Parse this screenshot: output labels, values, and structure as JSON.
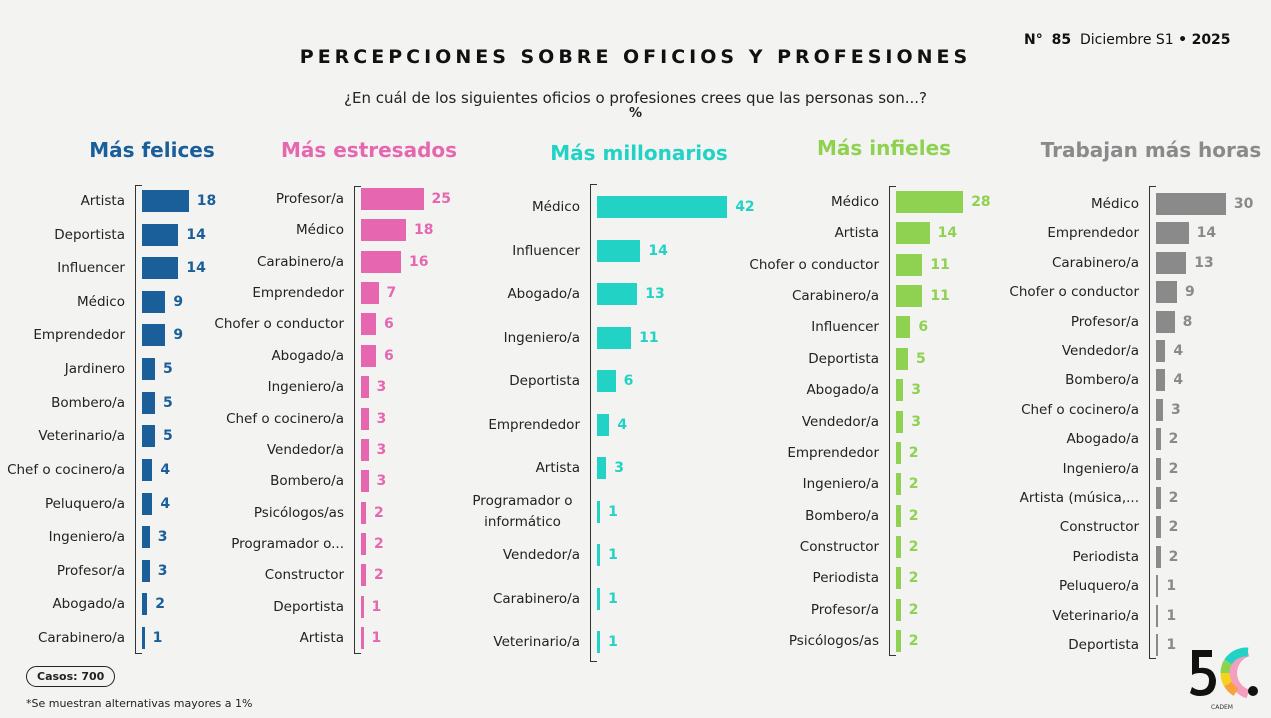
{
  "header": {
    "title": "PERCEPCIONES SOBRE OFICIOS Y PROFESIONES",
    "subtitle": "¿En cuál de los siguientes oficios o profesiones crees que las personas son...?",
    "unit": "%",
    "issue_prefix": "N°",
    "issue_number": "85",
    "issue_period": "Diciembre S1",
    "issue_separator": "•",
    "issue_year": "2025"
  },
  "footer": {
    "casos": "Casos: 700",
    "note": "*Se muestran alternativas mayores a 1%",
    "logo_text": "5C.",
    "logo_sub": "CADEM"
  },
  "chart_data": [
    {
      "type": "bar",
      "orientation": "horizontal",
      "title": "Más felices",
      "color": "#1a5e9a",
      "categories": [
        "Artista",
        "Deportista",
        "Influencer",
        "Médico",
        "Emprendedor",
        "Jardinero",
        "Bombero/a",
        "Veterinario/a",
        "Chef o cocinero/a",
        "Peluquero/a",
        "Ingeniero/a",
        "Profesor/a",
        "Abogado/a",
        "Carabinero/a"
      ],
      "values": [
        18,
        14,
        14,
        9,
        9,
        5,
        5,
        5,
        4,
        4,
        3,
        3,
        2,
        1
      ]
    },
    {
      "type": "bar",
      "orientation": "horizontal",
      "title": "Más estresados",
      "color": "#e667b0",
      "categories": [
        "Profesor/a",
        "Médico",
        "Carabinero/a",
        "Emprendedor",
        "Chofer o conductor",
        "Abogado/a",
        "Ingeniero/a",
        "Chef o cocinero/a",
        "Vendedor/a",
        "Bombero/a",
        "Psicólogos/as",
        "Programador o...",
        "Constructor",
        "Deportista",
        "Artista"
      ],
      "values": [
        25,
        18,
        16,
        7,
        6,
        6,
        3,
        3,
        3,
        3,
        2,
        2,
        2,
        1,
        1
      ]
    },
    {
      "type": "bar",
      "orientation": "horizontal",
      "title": "Más millonarios",
      "color": "#22d3c5",
      "categories": [
        "Médico",
        "Influencer",
        "Abogado/a",
        "Ingeniero/a",
        "Deportista",
        "Emprendedor",
        "Artista",
        "Programador o informático",
        "Vendedor/a",
        "Carabinero/a",
        "Veterinario/a"
      ],
      "values": [
        42,
        14,
        13,
        11,
        6,
        4,
        3,
        1,
        1,
        1,
        1
      ]
    },
    {
      "type": "bar",
      "orientation": "horizontal",
      "title": "Más infieles",
      "color": "#8fd150",
      "categories": [
        "Médico",
        "Artista",
        "Chofer o conductor",
        "Carabinero/a",
        "Influencer",
        "Deportista",
        "Abogado/a",
        "Vendedor/a",
        "Emprendedor",
        "Ingeniero/a",
        "Bombero/a",
        "Constructor",
        "Periodista",
        "Profesor/a",
        "Psicólogos/as"
      ],
      "values": [
        28,
        14,
        11,
        11,
        6,
        5,
        3,
        3,
        2,
        2,
        2,
        2,
        2,
        2,
        2
      ]
    },
    {
      "type": "bar",
      "orientation": "horizontal",
      "title": "Trabajan más horas",
      "color": "#8a8a8a",
      "categories": [
        "Médico",
        "Emprendedor",
        "Carabinero/a",
        "Chofer o conductor",
        "Profesor/a",
        "Vendedor/a",
        "Bombero/a",
        "Chef o cocinero/a",
        "Abogado/a",
        "Ingeniero/a",
        "Artista (música,...",
        "Constructor",
        "Periodista",
        "Peluquero/a",
        "Veterinario/a",
        "Deportista"
      ],
      "values": [
        30,
        14,
        13,
        9,
        8,
        4,
        4,
        3,
        2,
        2,
        2,
        2,
        2,
        1,
        1,
        1
      ]
    }
  ]
}
